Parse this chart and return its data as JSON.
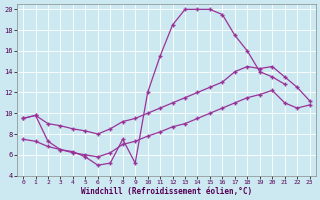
{
  "xlabel": "Windchill (Refroidissement éolien,°C)",
  "bg_color": "#cce8f0",
  "grid_color": "#ffffff",
  "line_color": "#993399",
  "xlim": [
    -0.5,
    23.5
  ],
  "ylim": [
    4,
    20.5
  ],
  "xticks": [
    0,
    1,
    2,
    3,
    4,
    5,
    6,
    7,
    8,
    9,
    10,
    11,
    12,
    13,
    14,
    15,
    16,
    17,
    18,
    19,
    20,
    21,
    22,
    23
  ],
  "yticks": [
    4,
    6,
    8,
    10,
    12,
    14,
    16,
    18,
    20
  ],
  "s1x": [
    0,
    1,
    2,
    3,
    4,
    5,
    6,
    7,
    8,
    9,
    10,
    11,
    12,
    13,
    14,
    15,
    16,
    17,
    18,
    19,
    20,
    21
  ],
  "s1y": [
    9.5,
    9.8,
    7.3,
    6.5,
    6.3,
    5.8,
    5.0,
    5.2,
    7.5,
    5.2,
    12.0,
    15.5,
    18.5,
    20.0,
    20.0,
    20.0,
    19.5,
    17.5,
    16.0,
    14.0,
    13.5,
    12.8
  ],
  "s2x": [
    0,
    1,
    2,
    3,
    4,
    5,
    6,
    7,
    8,
    9,
    10,
    11,
    12,
    13,
    14,
    15,
    16,
    17,
    18,
    19,
    20,
    21,
    22,
    23
  ],
  "s2y": [
    9.5,
    9.8,
    9.0,
    8.8,
    8.5,
    8.3,
    8.0,
    8.5,
    9.2,
    9.5,
    10.0,
    10.5,
    11.0,
    11.5,
    12.0,
    12.5,
    13.0,
    14.0,
    14.5,
    14.3,
    14.5,
    13.5,
    12.5,
    11.2
  ],
  "s3x": [
    0,
    1,
    2,
    3,
    4,
    5,
    6,
    7,
    8,
    9,
    10,
    11,
    12,
    13,
    14,
    15,
    16,
    17,
    18,
    19,
    20,
    21,
    22,
    23
  ],
  "s3y": [
    7.5,
    7.3,
    6.8,
    6.5,
    6.2,
    6.0,
    5.8,
    6.2,
    7.0,
    7.3,
    7.8,
    8.2,
    8.7,
    9.0,
    9.5,
    10.0,
    10.5,
    11.0,
    11.5,
    11.8,
    12.2,
    11.0,
    10.5,
    10.8
  ]
}
